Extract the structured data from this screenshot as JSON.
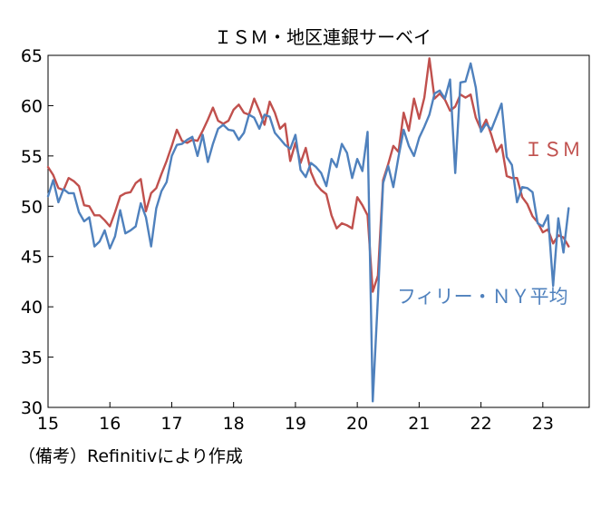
{
  "colors": {
    "ism": "#c0504d",
    "philly_ny": "#4f81bd",
    "axis": "#000000",
    "text": "#000000"
  },
  "caption": "（備考）Refinitivにより作成",
  "chart_data": {
    "type": "line",
    "title": "ＩＳＭ・地区連銀サーベイ",
    "xlabel": "",
    "ylabel": "",
    "xlim": [
      2015,
      2023.75
    ],
    "ylim": [
      30,
      65
    ],
    "yticks": [
      30,
      35,
      40,
      45,
      50,
      55,
      60,
      65
    ],
    "xticks": [
      2015,
      2016,
      2017,
      2018,
      2019,
      2020,
      2021,
      2022,
      2023
    ],
    "xtick_labels": [
      "15",
      "16",
      "17",
      "18",
      "19",
      "20",
      "21",
      "22",
      "23"
    ],
    "grid": false,
    "series": [
      {
        "name": "ＩＳＭ",
        "color": "#c0504d",
        "start": "2015-01",
        "values": [
          53.9,
          53.1,
          51.8,
          51.6,
          52.8,
          52.5,
          52.0,
          50.1,
          50.0,
          49.1,
          49.1,
          48.6,
          48.0,
          49.4,
          51.0,
          51.3,
          51.4,
          52.3,
          52.7,
          49.5,
          51.3,
          51.8,
          53.2,
          54.5,
          56.0,
          57.6,
          56.5,
          56.3,
          56.6,
          56.5,
          57.5,
          58.6,
          59.8,
          58.5,
          58.2,
          58.5,
          59.6,
          60.1,
          59.3,
          59.1,
          60.7,
          59.5,
          58.1,
          60.4,
          59.3,
          57.7,
          58.2,
          54.5,
          56.3,
          54.3,
          55.8,
          53.4,
          52.2,
          51.6,
          51.2,
          49.1,
          47.8,
          48.3,
          48.1,
          47.8,
          50.9,
          50.1,
          49.1,
          41.5,
          43.1,
          52.6,
          54.2,
          56.0,
          55.4,
          59.3,
          57.5,
          60.7,
          58.7,
          60.8,
          64.7,
          60.7,
          61.2,
          60.6,
          59.5,
          59.9,
          61.1,
          60.8,
          61.1,
          58.8,
          57.6,
          58.6,
          57.1,
          55.4,
          56.1,
          53.0,
          52.8,
          52.8,
          50.9,
          50.2,
          49.0,
          48.4,
          47.4,
          47.7,
          46.3,
          47.1,
          46.9,
          46.0
        ]
      },
      {
        "name": "フィリー・ＮＹ平均",
        "color": "#4f81bd",
        "start": "2015-01",
        "values": [
          51.0,
          52.6,
          50.4,
          51.7,
          51.3,
          51.3,
          49.4,
          48.5,
          48.9,
          46.0,
          46.5,
          47.6,
          45.8,
          47.0,
          49.6,
          47.3,
          47.6,
          48.0,
          50.3,
          48.9,
          46.0,
          49.8,
          51.5,
          52.4,
          55.0,
          56.1,
          56.2,
          56.6,
          56.9,
          55.0,
          57.1,
          54.4,
          56.2,
          57.7,
          58.1,
          57.6,
          57.5,
          56.6,
          57.3,
          59.1,
          58.8,
          57.7,
          59.1,
          58.9,
          57.3,
          56.7,
          56.1,
          55.7,
          57.1,
          53.6,
          52.9,
          54.3,
          53.9,
          53.3,
          52.0,
          54.7,
          53.9,
          56.2,
          55.3,
          52.8,
          54.7,
          53.5,
          57.4,
          30.6,
          40.9,
          52.3,
          54.0,
          51.9,
          54.9,
          57.6,
          56.0,
          55.0,
          56.8,
          57.9,
          59.1,
          61.2,
          61.5,
          60.7,
          62.6,
          53.3,
          62.3,
          62.4,
          64.2,
          61.8,
          57.4,
          58.2,
          57.6,
          58.9,
          60.2,
          54.9,
          54.1,
          50.4,
          51.9,
          51.8,
          51.4,
          48.3,
          48.0,
          49.1,
          42.1,
          48.8,
          45.4,
          49.8
        ]
      }
    ]
  }
}
